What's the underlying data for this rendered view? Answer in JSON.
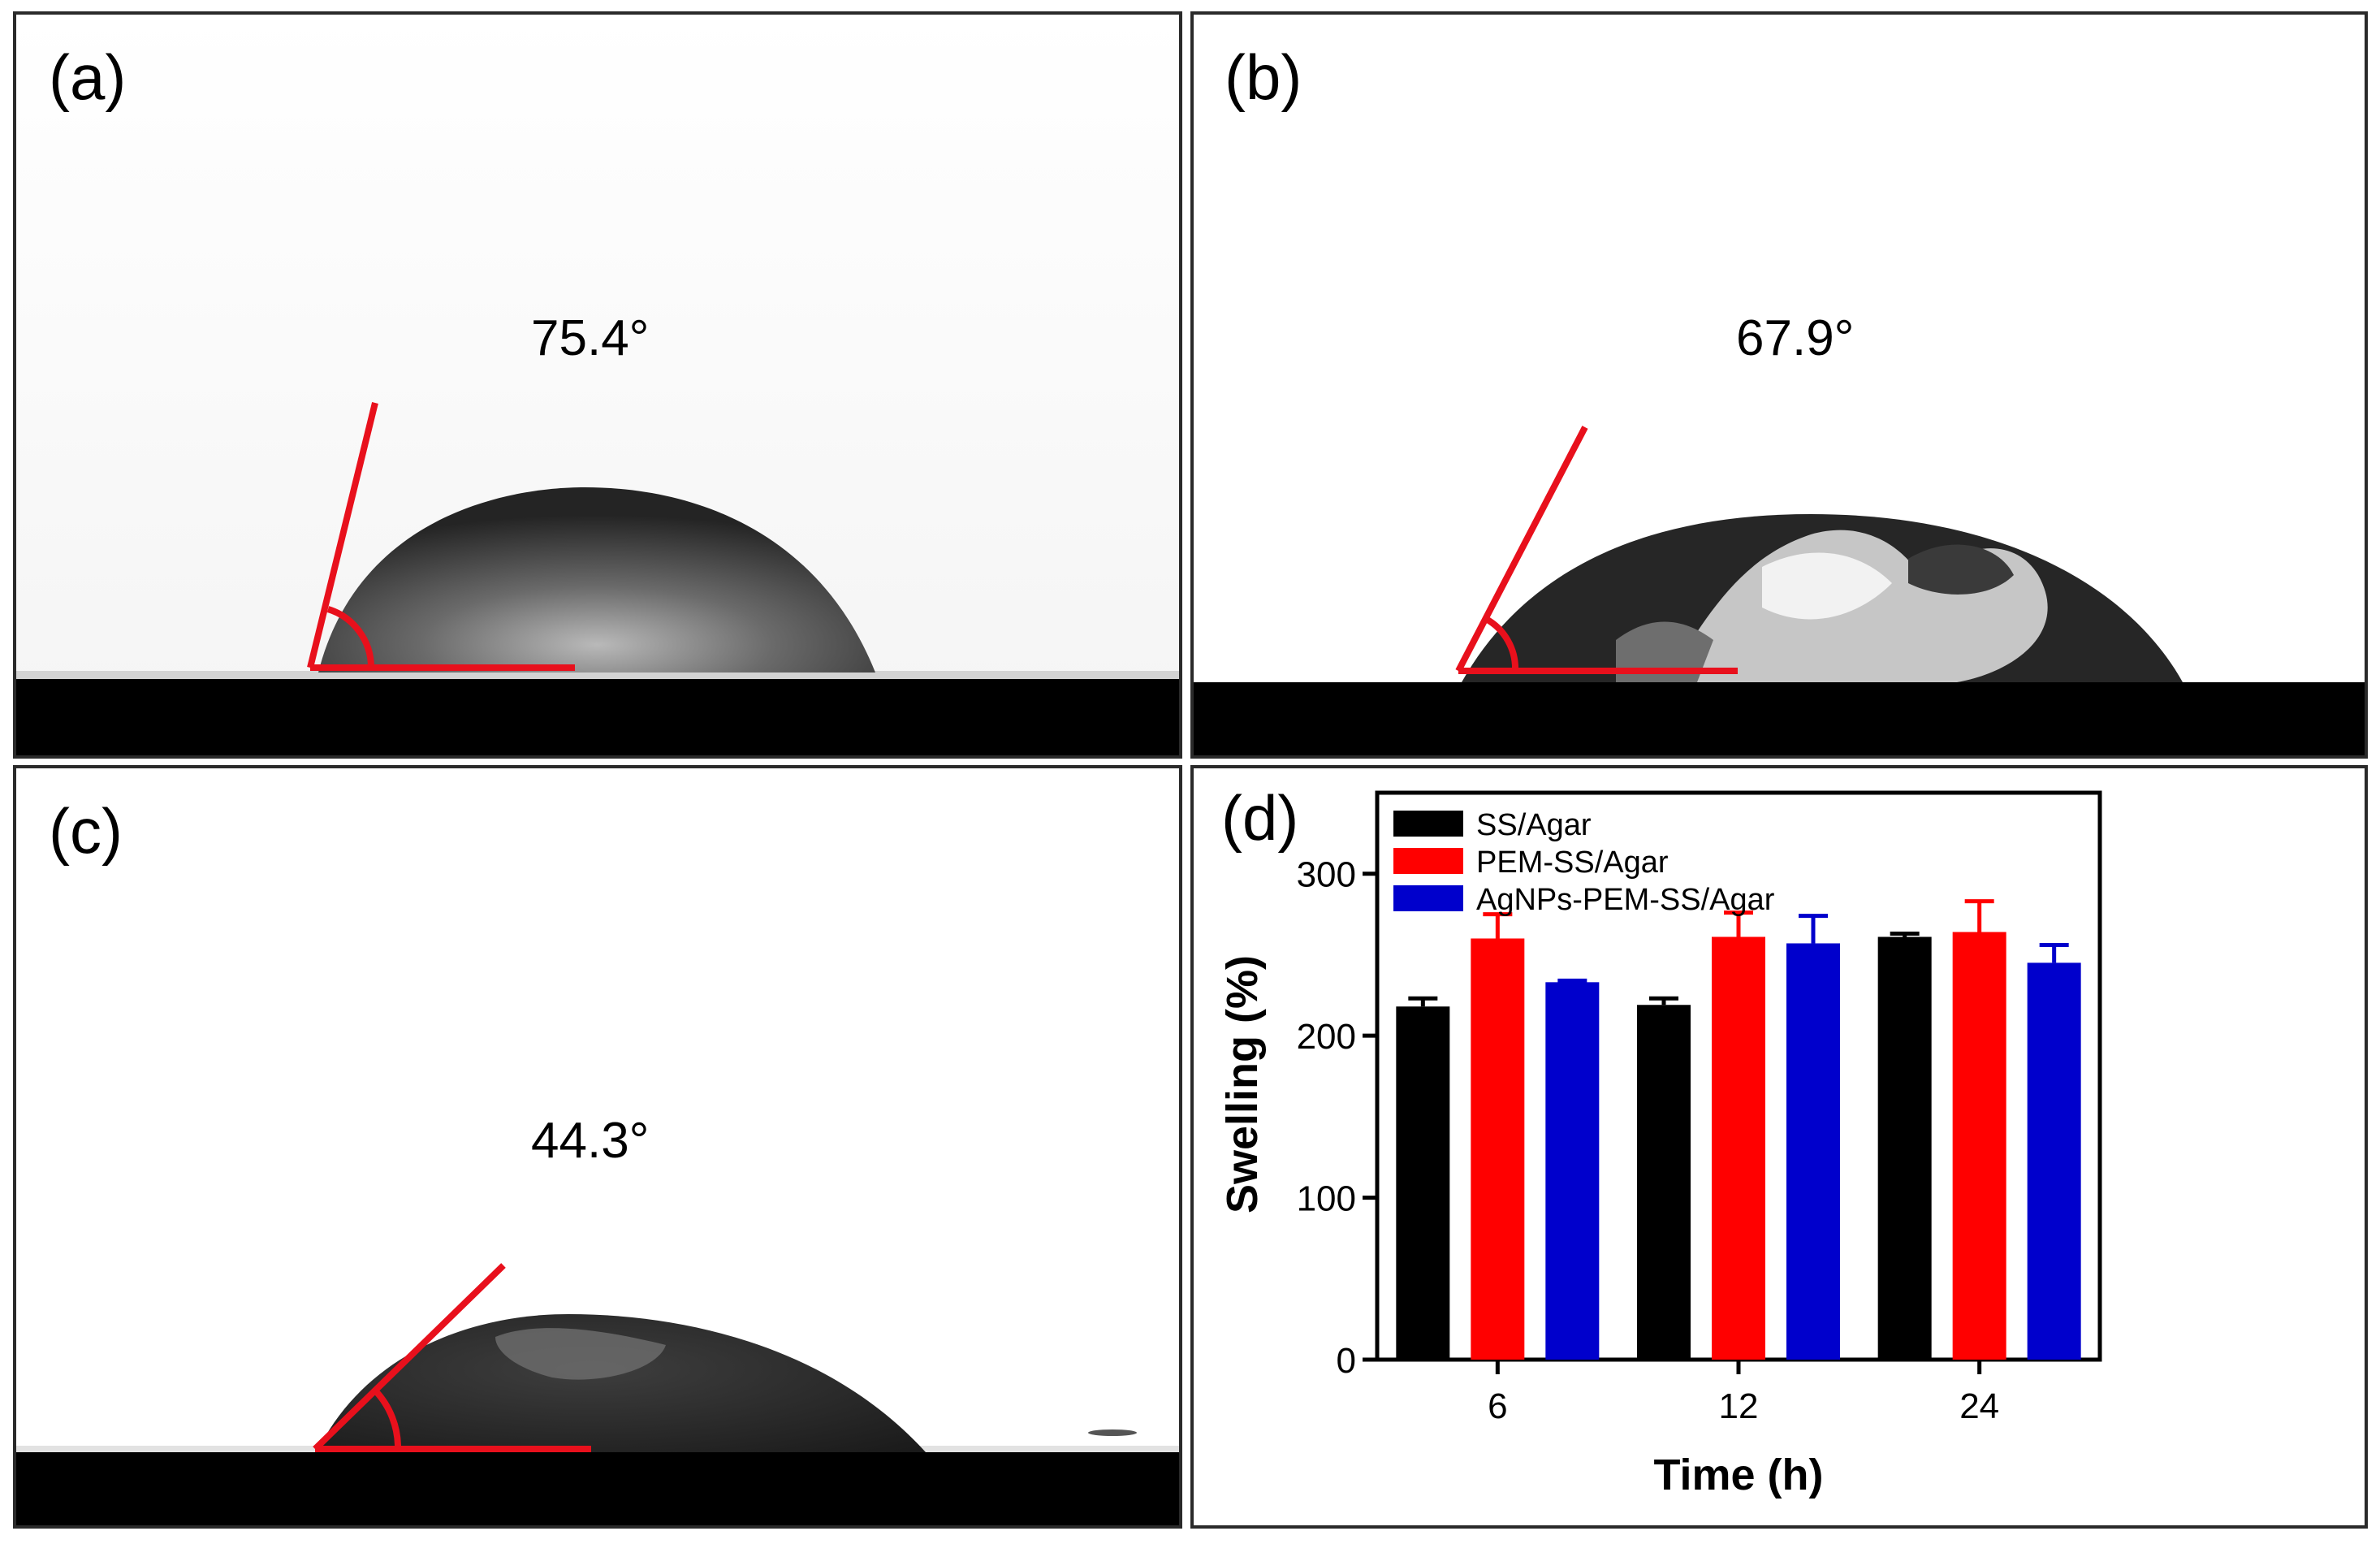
{
  "panels": [
    {
      "label": "(a)",
      "angle_text": "75.4°",
      "contact_angle_deg": 75.4
    },
    {
      "label": "(b)",
      "angle_text": "67.9°",
      "contact_angle_deg": 67.9
    },
    {
      "label": "(c)",
      "angle_text": "44.3°",
      "contact_angle_deg": 44.3
    }
  ],
  "panel_d_label": "(d)",
  "colors": {
    "angle_line": "#e8101c",
    "substrate": "#000000",
    "SS/Agar": "#000000",
    "PEM-SS/Agar": "#ff0000",
    "AgNPs-PEM-SS/Agar": "#0000cc"
  },
  "chart_data": {
    "type": "bar",
    "xlabel": "Time (h)",
    "ylabel": "Swelling (%)",
    "categories": [
      "6",
      "12",
      "24"
    ],
    "ylim": [
      0,
      350
    ],
    "yticks": [
      0,
      100,
      200,
      300
    ],
    "legend_position": "top-left",
    "grid": false,
    "series": [
      {
        "name": "SS/Agar",
        "values": [
          218,
          219,
          261
        ],
        "errors": [
          5,
          4,
          2
        ]
      },
      {
        "name": "PEM-SS/Agar",
        "values": [
          260,
          261,
          264
        ],
        "errors": [
          15,
          15,
          19
        ]
      },
      {
        "name": "AgNPs-PEM-SS/Agar",
        "values": [
          233,
          257,
          245
        ],
        "errors": [
          1,
          17,
          11
        ]
      }
    ]
  }
}
